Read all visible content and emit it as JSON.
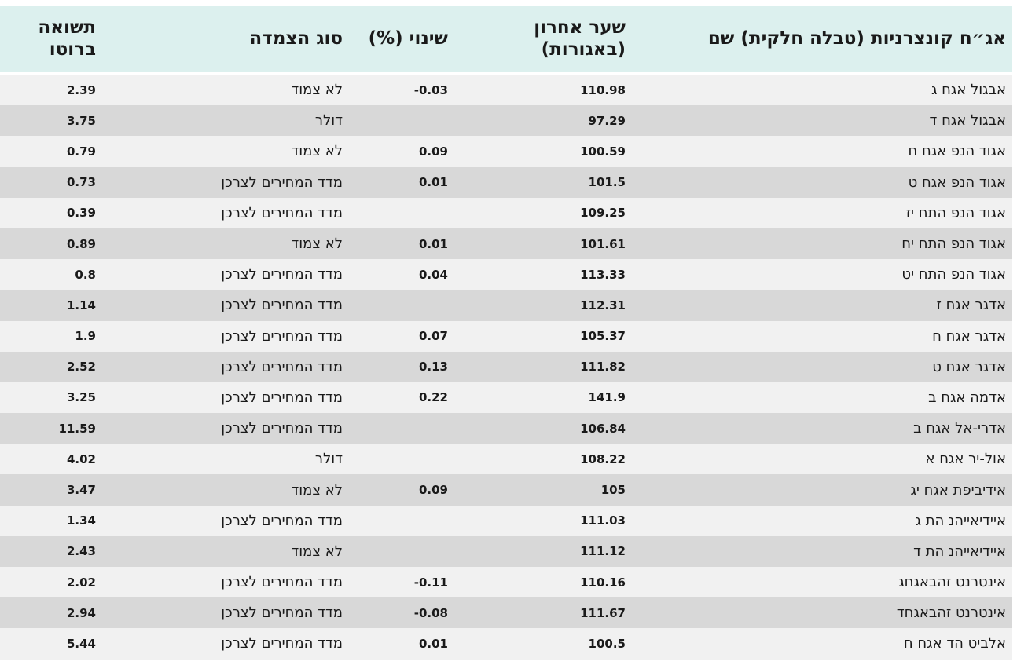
{
  "table": {
    "header": [
      "אג״ח קונצרניות (טבלה חלקית) שם",
      "שער אחרון (באגורות)",
      "שינוי (%)",
      "סוג הצמדה",
      "תשואה ברוטו"
    ],
    "rows": [
      [
        "אבגול אגח ג",
        110.98,
        -0.03,
        "לא צמוד",
        2.39
      ],
      [
        "אבגול אגח ד",
        97.29,
        null,
        "דולר",
        3.75
      ],
      [
        "אגוד הנפ אגח ח",
        100.59,
        0.09,
        "לא צמוד",
        0.79
      ],
      [
        "אגוד הנפ אגח ט",
        101.5,
        0.01,
        "מדד המחירים לצרכן",
        0.73
      ],
      [
        "אגוד הנפ התח יז",
        109.25,
        null,
        "מדד המחירים לצרכן",
        0.39
      ],
      [
        "אגוד הנפ התח יח",
        101.61,
        0.01,
        "לא צמוד",
        0.89
      ],
      [
        "אגוד הנפ התח יט",
        113.33,
        0.04,
        "מדד המחירים לצרכן",
        0.8
      ],
      [
        "אדגר אגח ז",
        112.31,
        null,
        "מדד המחירים לצרכן",
        1.14
      ],
      [
        "אדגר אגח ח",
        105.37,
        0.07,
        "מדד המחירים לצרכן",
        1.9
      ],
      [
        "אדגר אגח ט",
        111.82,
        0.13,
        "מדד המחירים לצרכן",
        2.52
      ],
      [
        "אדמה אגח ב",
        141.9,
        0.22,
        "מדד המחירים לצרכן",
        3.25
      ],
      [
        "אדרי-אל אגח ב",
        106.84,
        null,
        "מדד המחירים לצרכן",
        11.59
      ],
      [
        "אול-יר אגח א",
        108.22,
        null,
        "דולר",
        4.02
      ],
      [
        "אידיביפת אגח יג",
        105,
        0.09,
        "לא צמוד",
        3.47
      ],
      [
        "איידיאייהנ הת ג",
        111.03,
        null,
        "מדד המחירים לצרכן",
        1.34
      ],
      [
        "איידיאייהנ הת ד",
        111.12,
        null,
        "לא צמוד",
        2.43
      ],
      [
        "אינטרנט זהבאגחג",
        110.16,
        -0.11,
        "מדד המחירים לצרכן",
        2.02
      ],
      [
        "אינטרנט זהבאגחד",
        111.67,
        -0.08,
        "מדד המחירים לצרכן",
        2.94
      ],
      [
        "אלביט הד אגח ח",
        100.5,
        0.01,
        "מדד המחירים לצרכן",
        5.44
      ]
    ]
  }
}
